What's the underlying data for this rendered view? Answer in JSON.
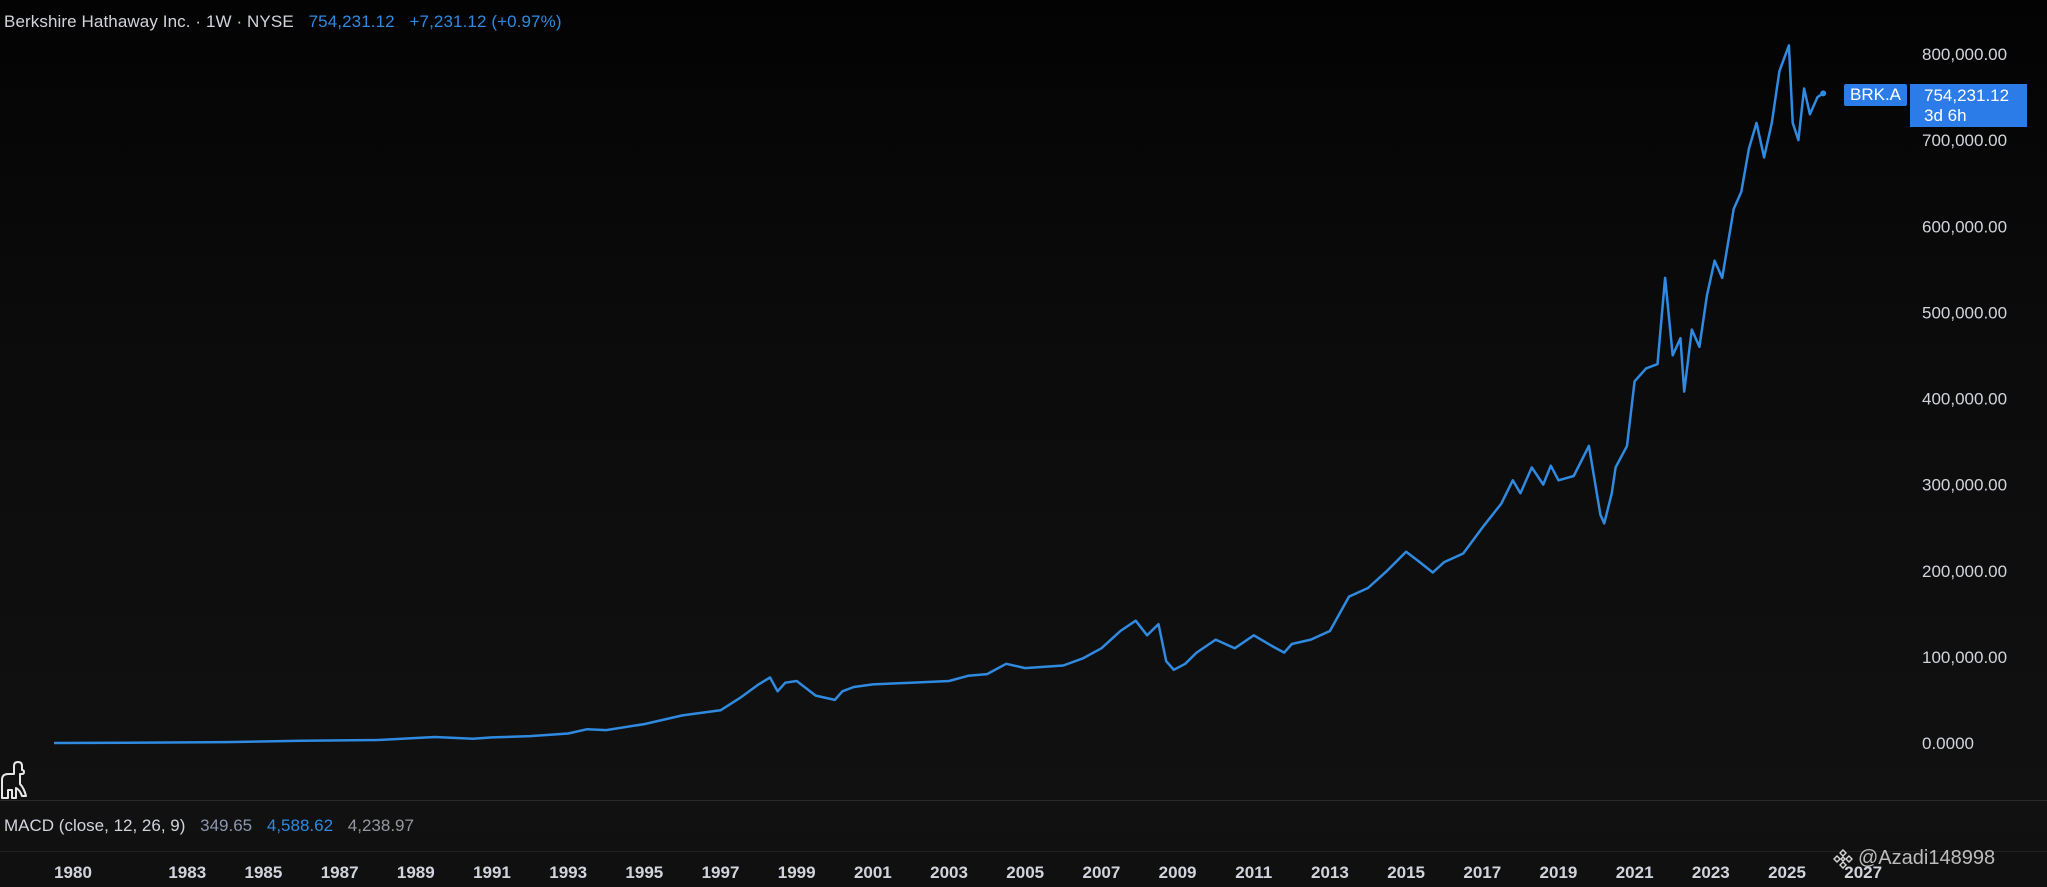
{
  "header": {
    "title": "Berkshire Hathaway Inc. · 1W · NYSE",
    "price": "754,231.12",
    "change": "+7,231.12 (+0.97%)"
  },
  "price_label": {
    "symbol": "BRK.A",
    "price": "754,231.12",
    "countdown": "3d 6h"
  },
  "indicator": {
    "name": "MACD (close, 12, 26, 9)",
    "value1": "349.65",
    "value2": "4,588.62",
    "value3": "4,238.97"
  },
  "watermark": "@Azadi148998",
  "colors": {
    "line": "#2f8ae0",
    "accent": "#2b7be8",
    "axis_text": "#d1d4dc"
  },
  "chart_data": {
    "type": "line",
    "title": "Berkshire Hathaway Inc. · 1W · NYSE",
    "xlabel": "",
    "ylabel": "",
    "y_tick_labels": [
      "800,000.00",
      "700,000.00",
      "600,000.00",
      "500,000.00",
      "400,000.00",
      "300,000.00",
      "200,000.00",
      "100,000.00",
      "0.0000"
    ],
    "y_ticks": [
      800000,
      700000,
      600000,
      500000,
      400000,
      300000,
      200000,
      100000,
      0
    ],
    "x_tick_labels": [
      "1980",
      "1983",
      "1985",
      "1987",
      "1989",
      "1991",
      "1993",
      "1995",
      "1997",
      "1999",
      "2001",
      "2003",
      "2005",
      "2007",
      "2009",
      "2011",
      "2013",
      "2015",
      "2017",
      "2019",
      "2021",
      "2023",
      "2025",
      "2027"
    ],
    "x_ticks": [
      1980,
      1983,
      1985,
      1987,
      1989,
      1991,
      1993,
      1995,
      1997,
      1999,
      2001,
      2003,
      2005,
      2007,
      2009,
      2011,
      2013,
      2015,
      2017,
      2019,
      2021,
      2023,
      2025,
      2027
    ],
    "ylim": [
      -70000,
      820000
    ],
    "xlim": [
      1978.6,
      2028.3
    ],
    "grid": false,
    "series": [
      {
        "name": "BRK.A",
        "x": [
          1979.5,
          1982,
          1984,
          1986,
          1988,
          1989.5,
          1990.5,
          1991,
          1992,
          1993,
          1993.5,
          1994,
          1995,
          1996,
          1997,
          1997.5,
          1998,
          1998.3,
          1998.5,
          1998.7,
          1999,
          1999.5,
          2000,
          2000.2,
          2000.5,
          2001,
          2002,
          2003,
          2003.5,
          2004,
          2004.5,
          2005,
          2006,
          2006.5,
          2007,
          2007.5,
          2007.9,
          2008.2,
          2008.5,
          2008.7,
          2008.9,
          2009.2,
          2009.5,
          2010,
          2010.5,
          2011,
          2011.5,
          2011.8,
          2012,
          2012.5,
          2013,
          2013.5,
          2014,
          2014.5,
          2015,
          2015.3,
          2015.7,
          2016,
          2016.5,
          2017,
          2017.5,
          2017.8,
          2018,
          2018.3,
          2018.6,
          2018.8,
          2019,
          2019.4,
          2019.8,
          2020.1,
          2020.2,
          2020.4,
          2020.5,
          2020.8,
          2021,
          2021.3,
          2021.6,
          2021.8,
          2022,
          2022.2,
          2022.3,
          2022.5,
          2022.7,
          2022.9,
          2023.1,
          2023.3,
          2023.6,
          2023.8,
          2024,
          2024.2,
          2024.4,
          2024.6,
          2024.8,
          2025.05,
          2025.15,
          2025.3,
          2025.45,
          2025.6,
          2025.8,
          2025.95
        ],
        "y": [
          0,
          500,
          1000,
          2500,
          3500,
          7000,
          5000,
          6500,
          8000,
          11000,
          16000,
          15000,
          22000,
          32000,
          38000,
          52000,
          68000,
          76000,
          60000,
          70000,
          72000,
          55000,
          50000,
          60000,
          65000,
          68000,
          70000,
          72000,
          78000,
          80000,
          92000,
          87000,
          90000,
          98000,
          110000,
          130000,
          142000,
          125000,
          138000,
          95000,
          85000,
          92000,
          105000,
          120000,
          110000,
          125000,
          112000,
          105000,
          115000,
          120000,
          130000,
          170000,
          180000,
          200000,
          222000,
          212000,
          198000,
          210000,
          220000,
          250000,
          278000,
          305000,
          290000,
          320000,
          300000,
          322000,
          305000,
          310000,
          345000,
          265000,
          255000,
          290000,
          320000,
          345000,
          420000,
          435000,
          440000,
          540000,
          450000,
          470000,
          408000,
          480000,
          460000,
          520000,
          560000,
          540000,
          620000,
          640000,
          690000,
          720000,
          680000,
          720000,
          780000,
          810000,
          720000,
          700000,
          760000,
          730000,
          750000,
          754231.12
        ]
      }
    ],
    "last_value": 754231.12
  }
}
